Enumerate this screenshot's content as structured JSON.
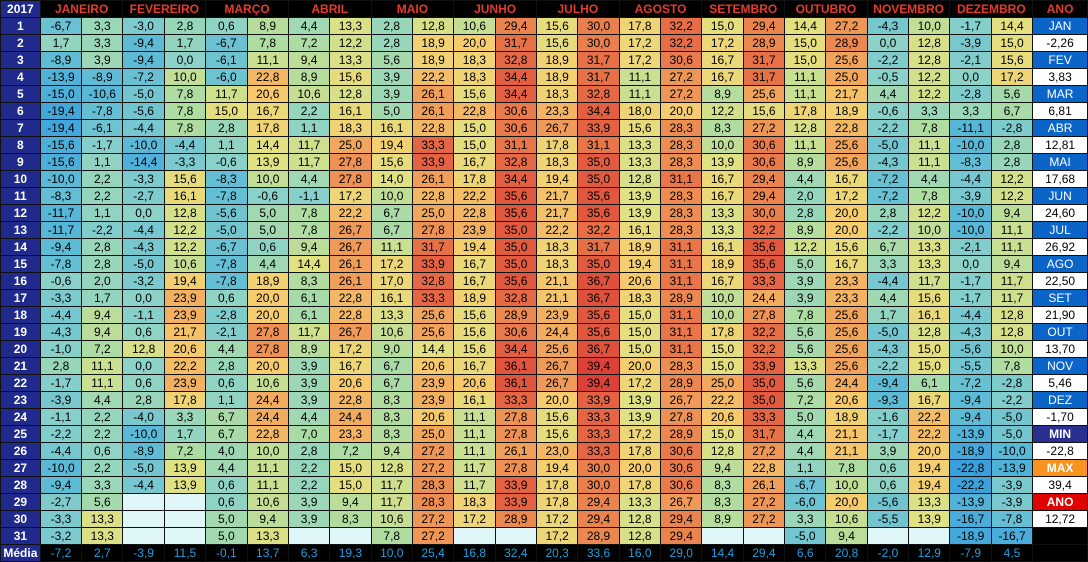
{
  "year": "2017",
  "months": [
    "JANEIRO",
    "FEVEREIRO",
    "MARÇO",
    "ABRIL",
    "MAIO",
    "JUNHO",
    "JULHO",
    "AGOSTO",
    "SETEMBRO",
    "OUTUBRO",
    "NOVEMBRO",
    "DEZEMBRO"
  ],
  "ano_header": "ANO",
  "media_label": "Média",
  "rows": [
    [
      [
        -6.7,
        3.3
      ],
      [
        -3.0,
        2.8
      ],
      [
        0.6,
        8.9
      ],
      [
        4.4,
        13.3
      ],
      [
        2.8,
        12.8
      ],
      [
        10.6,
        29.4
      ],
      [
        15.6,
        30.0
      ],
      [
        17.8,
        32.2
      ],
      [
        15.0,
        29.4
      ],
      [
        14.4,
        27.2
      ],
      [
        -4.3,
        10.0
      ],
      [
        -1.7,
        14.4
      ]
    ],
    [
      [
        1.7,
        3.3
      ],
      [
        -9.4,
        1.7
      ],
      [
        -6.7,
        7.8
      ],
      [
        7.2,
        12.2
      ],
      [
        2.8,
        18.9
      ],
      [
        20.0,
        31.7
      ],
      [
        15.6,
        30.0
      ],
      [
        17.2,
        32.2
      ],
      [
        17.2,
        28.9
      ],
      [
        15.0,
        28.9
      ],
      [
        0.0,
        12.8
      ],
      [
        -3.9,
        15.0
      ]
    ],
    [
      [
        -8.9,
        3.9
      ],
      [
        -9.4,
        0.0
      ],
      [
        -6.1,
        11.1
      ],
      [
        9.4,
        13.3
      ],
      [
        5.6,
        18.9
      ],
      [
        18.3,
        32.8
      ],
      [
        18.9,
        31.7
      ],
      [
        17.2,
        30.6
      ],
      [
        16.7,
        31.7
      ],
      [
        15.0,
        25.6
      ],
      [
        -2.2,
        12.8
      ],
      [
        -2.1,
        15.6
      ]
    ],
    [
      [
        -13.9,
        -8.9
      ],
      [
        -7.2,
        10.0
      ],
      [
        -6.0,
        22.8
      ],
      [
        8.9,
        15.6
      ],
      [
        3.9,
        22.2
      ],
      [
        18.3,
        34.4
      ],
      [
        18.9,
        31.7
      ],
      [
        11.1,
        27.2
      ],
      [
        16.7,
        31.7
      ],
      [
        11.1,
        25.0
      ],
      [
        -0.5,
        12.2
      ],
      [
        0.0,
        17.2
      ]
    ],
    [
      [
        -15.0,
        -10.6
      ],
      [
        -5.0,
        7.8
      ],
      [
        11.7,
        20.6
      ],
      [
        10.6,
        12.8
      ],
      [
        3.9,
        26.1
      ],
      [
        15.6,
        34.4
      ],
      [
        18.3,
        32.8
      ],
      [
        11.1,
        27.2
      ],
      [
        8.9,
        25.6
      ],
      [
        11.1,
        21.7
      ],
      [
        4.4,
        12.2
      ],
      [
        -2.8,
        5.6
      ]
    ],
    [
      [
        -19.4,
        -7.8
      ],
      [
        -5.6,
        7.8
      ],
      [
        15.0,
        16.7
      ],
      [
        2.2,
        16.1
      ],
      [
        5.0,
        26.1
      ],
      [
        22.8,
        30.6
      ],
      [
        23.3,
        34.4
      ],
      [
        18.0,
        20.0
      ],
      [
        12.2,
        15.6
      ],
      [
        17.8,
        18.9
      ],
      [
        -0.6,
        3.3
      ],
      [
        3.3,
        6.7
      ]
    ],
    [
      [
        -19.4,
        -6.1
      ],
      [
        -4.4,
        7.8
      ],
      [
        2.8,
        17.8
      ],
      [
        1.1,
        18.3
      ],
      [
        16.1,
        22.8
      ],
      [
        15.0,
        30.6
      ],
      [
        26.7,
        33.9
      ],
      [
        15.6,
        28.3
      ],
      [
        8.3,
        27.2
      ],
      [
        12.8,
        22.8
      ],
      [
        -2.2,
        7.8
      ],
      [
        -11.1,
        -2.8
      ]
    ],
    [
      [
        -15.6,
        -1.7
      ],
      [
        -10.0,
        -4.4
      ],
      [
        1.1,
        14.4
      ],
      [
        11.7,
        25.0
      ],
      [
        19.4,
        33.3
      ],
      [
        15.0,
        31.1
      ],
      [
        17.8,
        31.1
      ],
      [
        13.3,
        28.3
      ],
      [
        10.0,
        30.6
      ],
      [
        11.1,
        25.6
      ],
      [
        -5.0,
        11.1
      ],
      [
        -10.0,
        2.8
      ]
    ],
    [
      [
        -15.6,
        1.1
      ],
      [
        -14.4,
        -3.3
      ],
      [
        -0.6,
        13.9
      ],
      [
        11.7,
        27.8
      ],
      [
        15.6,
        33.9
      ],
      [
        16.7,
        32.8
      ],
      [
        18.3,
        35.0
      ],
      [
        13.3,
        28.3
      ],
      [
        13.9,
        30.6
      ],
      [
        8.9,
        25.6
      ],
      [
        -4.3,
        11.1
      ],
      [
        -8.3,
        2.8
      ]
    ],
    [
      [
        -10.0,
        2.2
      ],
      [
        -3.3,
        15.6
      ],
      [
        -8.3,
        10.0
      ],
      [
        4.4,
        27.8
      ],
      [
        14.0,
        26.1
      ],
      [
        17.8,
        34.4
      ],
      [
        19.4,
        35.0
      ],
      [
        12.8,
        31.1
      ],
      [
        16.7,
        29.4
      ],
      [
        4.4,
        16.7
      ],
      [
        -7.2,
        4.4
      ],
      [
        -4.4,
        12.2
      ]
    ],
    [
      [
        -8.3,
        2.2
      ],
      [
        -2.7,
        16.1
      ],
      [
        -7.8,
        -0.6
      ],
      [
        -1.1,
        17.2
      ],
      [
        10.0,
        22.8
      ],
      [
        22.2,
        35.6
      ],
      [
        21.7,
        35.6
      ],
      [
        13.9,
        28.3
      ],
      [
        16.7,
        29.4
      ],
      [
        2.0,
        17.2
      ],
      [
        -7.2,
        7.8
      ],
      [
        -3.9,
        12.2
      ]
    ],
    [
      [
        -11.7,
        1.1
      ],
      [
        0.0,
        12.8
      ],
      [
        -5.6,
        5.0
      ],
      [
        7.8,
        22.2
      ],
      [
        6.7,
        25.0
      ],
      [
        22.8,
        35.6
      ],
      [
        21.7,
        35.6
      ],
      [
        13.9,
        28.3
      ],
      [
        13.3,
        30.0
      ],
      [
        2.8,
        20.0
      ],
      [
        2.8,
        12.2
      ],
      [
        -10.0,
        9.4
      ]
    ],
    [
      [
        -11.7,
        -2.2
      ],
      [
        -4.4,
        12.2
      ],
      [
        -5.0,
        5.0
      ],
      [
        7.8,
        26.7
      ],
      [
        6.7,
        27.8
      ],
      [
        23.9,
        35.0
      ],
      [
        22.2,
        32.2
      ],
      [
        16.1,
        28.3
      ],
      [
        13.3,
        32.2
      ],
      [
        8.9,
        20.0
      ],
      [
        -2.2,
        10.0
      ],
      [
        -10.0,
        11.1
      ]
    ],
    [
      [
        -9.4,
        2.8
      ],
      [
        -4.3,
        12.2
      ],
      [
        -6.7,
        0.6
      ],
      [
        9.4,
        26.7
      ],
      [
        11.1,
        31.7
      ],
      [
        19.4,
        35.0
      ],
      [
        18.3,
        31.7
      ],
      [
        18.9,
        31.1
      ],
      [
        16.1,
        35.6
      ],
      [
        12.2,
        15.6
      ],
      [
        6.7,
        13.3
      ],
      [
        -2.1,
        11.1
      ]
    ],
    [
      [
        -7.8,
        2.8
      ],
      [
        -5.0,
        10.6
      ],
      [
        -7.8,
        4.4
      ],
      [
        14.4,
        26.1
      ],
      [
        17.2,
        33.9
      ],
      [
        16.7,
        35.0
      ],
      [
        18.3,
        35.0
      ],
      [
        19.4,
        31.1
      ],
      [
        18.9,
        35.6
      ],
      [
        5.0,
        16.7
      ],
      [
        3.3,
        13.3
      ],
      [
        0.0,
        9.4
      ]
    ],
    [
      [
        -0.6,
        2.0
      ],
      [
        -3.2,
        19.4
      ],
      [
        -7.8,
        18.9
      ],
      [
        8.3,
        26.1
      ],
      [
        17.0,
        32.8
      ],
      [
        16.7,
        35.6
      ],
      [
        21.1,
        36.7
      ],
      [
        20.6,
        31.1
      ],
      [
        16.7,
        33.3
      ],
      [
        3.9,
        23.3
      ],
      [
        -4.4,
        11.7
      ],
      [
        -1.7,
        11.7
      ]
    ],
    [
      [
        -3.3,
        1.7
      ],
      [
        0.0,
        23.9
      ],
      [
        0.6,
        20.0
      ],
      [
        6.1,
        22.8
      ],
      [
        16.1,
        33.3
      ],
      [
        18.9,
        32.8
      ],
      [
        21.1,
        36.7
      ],
      [
        18.3,
        28.9
      ],
      [
        10.0,
        24.4
      ],
      [
        3.9,
        23.3
      ],
      [
        4.4,
        15.6
      ],
      [
        -1.7,
        11.7
      ]
    ],
    [
      [
        -4.4,
        9.4
      ],
      [
        -1.1,
        23.9
      ],
      [
        -2.8,
        20.0
      ],
      [
        6.1,
        22.8
      ],
      [
        13.3,
        25.6
      ],
      [
        15.6,
        28.9
      ],
      [
        23.9,
        35.6
      ],
      [
        15.0,
        31.1
      ],
      [
        10.0,
        27.8
      ],
      [
        7.8,
        25.6
      ],
      [
        1.7,
        16.1
      ],
      [
        -4.4,
        12.8
      ]
    ],
    [
      [
        -4.3,
        9.4
      ],
      [
        0.6,
        21.7
      ],
      [
        -2.1,
        27.8
      ],
      [
        11.7,
        26.7
      ],
      [
        10.6,
        25.6
      ],
      [
        15.6,
        30.6
      ],
      [
        24.4,
        35.6
      ],
      [
        15.0,
        31.1
      ],
      [
        17.8,
        32.2
      ],
      [
        5.6,
        25.6
      ],
      [
        -5.0,
        12.8
      ],
      [
        -4.3,
        12.8
      ]
    ],
    [
      [
        -1.0,
        7.2
      ],
      [
        12.8,
        20.6
      ],
      [
        4.4,
        27.8
      ],
      [
        8.9,
        17.2
      ],
      [
        9.0,
        14.4
      ],
      [
        15.6,
        34.4
      ],
      [
        25.6,
        36.7
      ],
      [
        15.0,
        31.1
      ],
      [
        15.0,
        32.2
      ],
      [
        5.6,
        25.6
      ],
      [
        -4.3,
        15.0
      ],
      [
        -5.6,
        10.0
      ]
    ],
    [
      [
        2.8,
        11.1
      ],
      [
        0.0,
        22.2
      ],
      [
        2.8,
        20.0
      ],
      [
        3.9,
        16.7
      ],
      [
        6.7,
        20.6
      ],
      [
        16.7,
        36.1
      ],
      [
        26.7,
        39.4
      ],
      [
        20.0,
        28.3
      ],
      [
        15.0,
        33.9
      ],
      [
        13.3,
        25.6
      ],
      [
        -2.2,
        15.0
      ],
      [
        -5.5,
        7.8
      ]
    ],
    [
      [
        -1.7,
        11.1
      ],
      [
        0.6,
        23.9
      ],
      [
        0.6,
        10.6
      ],
      [
        3.9,
        20.6
      ],
      [
        6.7,
        23.9
      ],
      [
        20.6,
        36.1
      ],
      [
        26.7,
        39.4
      ],
      [
        17.2,
        28.9
      ],
      [
        25.0,
        35.0
      ],
      [
        5.6,
        24.4
      ],
      [
        -9.4,
        6.1
      ],
      [
        -7.2,
        -2.8
      ]
    ],
    [
      [
        -3.9,
        4.4
      ],
      [
        2.8,
        17.8
      ],
      [
        1.1,
        24.4
      ],
      [
        3.9,
        22.8
      ],
      [
        8.3,
        23.9
      ],
      [
        16.1,
        33.3
      ],
      [
        20.0,
        33.9
      ],
      [
        13.9,
        26.7
      ],
      [
        22.2,
        35.0
      ],
      [
        7.2,
        20.6
      ],
      [
        -9.3,
        16.7
      ],
      [
        -9.4,
        -2.2
      ]
    ],
    [
      [
        -1.1,
        2.2
      ],
      [
        -4.0,
        3.3
      ],
      [
        6.7,
        24.4
      ],
      [
        4.4,
        24.4
      ],
      [
        8.3,
        20.6
      ],
      [
        11.1,
        27.8
      ],
      [
        15.6,
        33.3
      ],
      [
        13.9,
        27.8
      ],
      [
        20.6,
        33.3
      ],
      [
        5.0,
        18.9
      ],
      [
        -1.6,
        22.2
      ],
      [
        -9.4,
        -5.0
      ]
    ],
    [
      [
        -2.2,
        2.2
      ],
      [
        -10.0,
        1.7
      ],
      [
        6.7,
        22.8
      ],
      [
        7.0,
        23.3
      ],
      [
        8.3,
        25.0
      ],
      [
        11.1,
        27.8
      ],
      [
        15.6,
        33.3
      ],
      [
        17.2,
        28.9
      ],
      [
        15.0,
        31.7
      ],
      [
        4.4,
        21.1
      ],
      [
        -1.7,
        22.2
      ],
      [
        -13.9,
        -5.0
      ]
    ],
    [
      [
        -4.4,
        0.6
      ],
      [
        -8.9,
        7.2
      ],
      [
        4.0,
        10.0
      ],
      [
        2.8,
        7.2
      ],
      [
        9.4,
        27.2
      ],
      [
        11.1,
        26.1
      ],
      [
        23.0,
        33.3
      ],
      [
        17.8,
        30.6
      ],
      [
        12.8,
        27.2
      ],
      [
        4.4,
        21.1
      ],
      [
        3.9,
        20.0
      ],
      [
        -18.9,
        -10.0
      ]
    ],
    [
      [
        -10.0,
        2.2
      ],
      [
        -5.0,
        13.9
      ],
      [
        4.4,
        11.1
      ],
      [
        2.2,
        15.0
      ],
      [
        12.8,
        27.2
      ],
      [
        11.7,
        27.8
      ],
      [
        19.4,
        30.0
      ],
      [
        20.0,
        30.6
      ],
      [
        9.4,
        22.8
      ],
      [
        1.1,
        7.8
      ],
      [
        0.6,
        19.4
      ],
      [
        -22.8,
        -13.9
      ]
    ],
    [
      [
        -9.4,
        3.3
      ],
      [
        -4.4,
        13.9
      ],
      [
        0.6,
        11.1
      ],
      [
        2.2,
        15.0
      ],
      [
        11.7,
        28.3
      ],
      [
        11.7,
        33.9
      ],
      [
        17.8,
        30.0
      ],
      [
        17.8,
        30.6
      ],
      [
        8.3,
        26.1
      ],
      [
        -6.7,
        10.0
      ],
      [
        0.6,
        19.4
      ],
      [
        -22.2,
        -3.9
      ]
    ],
    [
      [
        -2.7,
        5.6
      ],
      null,
      [
        0.6,
        10.6
      ],
      [
        3.9,
        9.4
      ],
      [
        11.7,
        28.3
      ],
      [
        18.3,
        33.9
      ],
      [
        17.8,
        29.4
      ],
      [
        13.3,
        26.7
      ],
      [
        8.3,
        27.2
      ],
      [
        -6.0,
        20.0
      ],
      [
        -5.6,
        13.3
      ],
      [
        -13.9,
        -3.9
      ]
    ],
    [
      [
        -3.3,
        13.3
      ],
      null,
      [
        5.0,
        9.4
      ],
      [
        3.9,
        8.3
      ],
      [
        10.6,
        27.2
      ],
      [
        17.2,
        28.9
      ],
      [
        17.2,
        29.4
      ],
      [
        12.8,
        29.4
      ],
      [
        8.9,
        27.2
      ],
      [
        3.3,
        10.6
      ],
      [
        -5.5,
        13.9
      ],
      [
        -16.7,
        -7.8
      ]
    ],
    [
      [
        -3.2,
        13.3
      ],
      null,
      [
        5.0,
        13.3
      ],
      null,
      [
        7.8,
        27.2
      ],
      null,
      [
        17.2,
        28.9
      ],
      [
        12.8,
        29.4
      ],
      null,
      [
        -5.0,
        9.4
      ],
      null,
      [
        -18.9,
        -16.7
      ]
    ]
  ],
  "media": [
    [
      -7.2,
      2.7
    ],
    [
      -3.9,
      11.5
    ],
    [
      -0.1,
      13.7
    ],
    [
      6.3,
      19.3
    ],
    [
      10.0,
      25.4
    ],
    [
      16.8,
      32.4
    ],
    [
      20.3,
      33.6
    ],
    [
      16.0,
      29.0
    ],
    [
      14.4,
      29.4
    ],
    [
      6.6,
      20.8
    ],
    [
      -2.0,
      12.9
    ],
    [
      -7.9,
      4.5
    ]
  ],
  "side": [
    {
      "type": "lab",
      "text": "JAN"
    },
    {
      "type": "val",
      "text": "-2,26"
    },
    {
      "type": "lab",
      "text": "FEV"
    },
    {
      "type": "val",
      "text": "3,83"
    },
    {
      "type": "lab",
      "text": "MAR"
    },
    {
      "type": "val",
      "text": "6,81"
    },
    {
      "type": "lab",
      "text": "ABR"
    },
    {
      "type": "val",
      "text": "12,81"
    },
    {
      "type": "lab",
      "text": "MAI"
    },
    {
      "type": "val",
      "text": "17,68"
    },
    {
      "type": "lab",
      "text": "JUN"
    },
    {
      "type": "val",
      "text": "24,60"
    },
    {
      "type": "lab",
      "text": "JUL"
    },
    {
      "type": "val",
      "text": "26,92"
    },
    {
      "type": "lab",
      "text": "AGO"
    },
    {
      "type": "val",
      "text": "22,50"
    },
    {
      "type": "lab",
      "text": "SET"
    },
    {
      "type": "val",
      "text": "21,90"
    },
    {
      "type": "lab",
      "text": "OUT"
    },
    {
      "type": "val",
      "text": "13,70"
    },
    {
      "type": "lab",
      "text": "NOV"
    },
    {
      "type": "val",
      "text": "5,46"
    },
    {
      "type": "lab",
      "text": "DEZ"
    },
    {
      "type": "val",
      "text": "-1,70"
    },
    {
      "type": "min",
      "text": "MIN"
    },
    {
      "type": "val",
      "text": "-22,8"
    },
    {
      "type": "max",
      "text": "MAX"
    },
    {
      "type": "val",
      "text": "39,4"
    },
    {
      "type": "ano",
      "text": "ANO"
    },
    {
      "type": "val",
      "text": "12,72"
    },
    {
      "type": "blank",
      "text": ""
    }
  ],
  "colors": {
    "header_bg": "#1f2a8c",
    "month_text": "#e53b2a",
    "media_text": "#1e9fe0",
    "side_label": "#0b65c9",
    "min_bg": "#2a2f8f",
    "max_bg": "#f7931e",
    "ano_bg": "#e00000",
    "empty_cell": "#dff7f9"
  }
}
